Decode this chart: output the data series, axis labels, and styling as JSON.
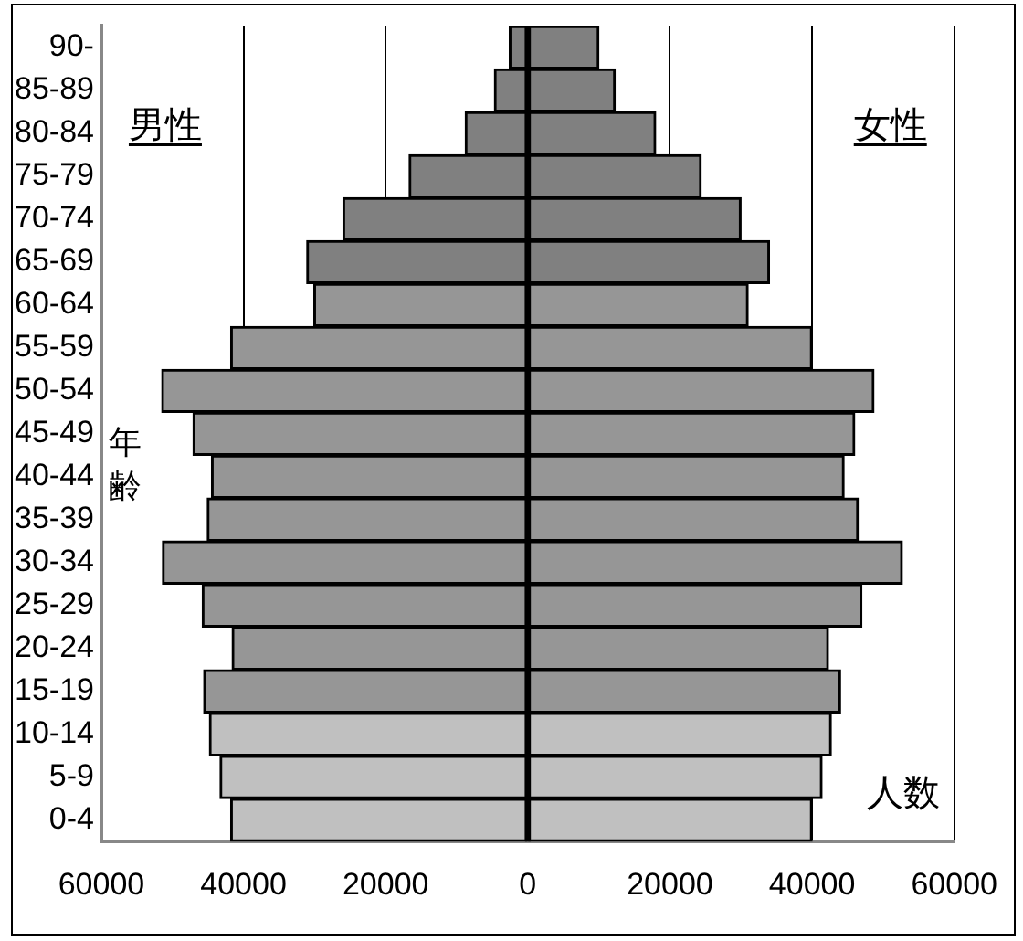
{
  "chart_data": {
    "type": "bar",
    "orientation": "horizontal",
    "stacked": true,
    "categories": [
      "90-",
      "85-89",
      "80-84",
      "75-79",
      "70-74",
      "65-69",
      "60-64",
      "55-59",
      "50-54",
      "45-49",
      "40-44",
      "35-39",
      "30-34",
      "25-29",
      "20-24",
      "15-19",
      "10-14",
      "5-9",
      "0-4"
    ],
    "series": [
      {
        "values": [
          -2600,
          -4700,
          -8800,
          -16700,
          -26000,
          -31100,
          -30100,
          -41800,
          -51500,
          -47100,
          -44500,
          -45100,
          -51400,
          -45800,
          -41600,
          -45600,
          -44800,
          -43300,
          -41800
        ],
        "colors": [
          "#808080",
          "#808080",
          "#808080",
          "#808080",
          "#808080",
          "#808080",
          "#969696",
          "#969696",
          "#969696",
          "#969696",
          "#969696",
          "#969696",
          "#969696",
          "#969696",
          "#969696",
          "#969696",
          "#c0c0c0",
          "#c0c0c0",
          "#c0c0c0"
        ]
      },
      {
        "values": [
          10000,
          12300,
          18000,
          24400,
          30000,
          34000,
          31000,
          40000,
          48700,
          46000,
          44500,
          46500,
          52700,
          47000,
          42300,
          44000,
          42700,
          41400,
          40000
        ],
        "colors": [
          "#808080",
          "#808080",
          "#808080",
          "#808080",
          "#808080",
          "#808080",
          "#969696",
          "#969696",
          "#969696",
          "#969696",
          "#969696",
          "#969696",
          "#969696",
          "#969696",
          "#969696",
          "#969696",
          "#c0c0c0",
          "#c0c0c0",
          "#c0c0c0"
        ]
      }
    ],
    "xlim": [
      -60000,
      60000
    ],
    "xticks": [
      {
        "value": -60000,
        "label": "60000"
      },
      {
        "value": -40000,
        "label": "40000"
      },
      {
        "value": -20000,
        "label": "20000"
      },
      0,
      20000,
      40000,
      60000
    ],
    "annotations": [
      "男性",
      "女性"
    ],
    "ref_lines": [
      {
        "axis": "x",
        "value": 0,
        "color": "#000000"
      }
    ],
    "xlabel": "人数",
    "ylabel": "年齢",
    "grid": "x",
    "legend": false
  }
}
